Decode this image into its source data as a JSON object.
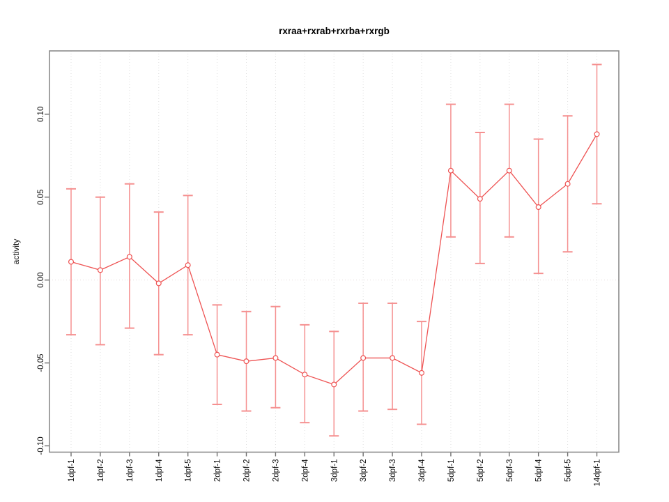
{
  "chart_data": {
    "type": "line",
    "title": "rxraa+rxrab+rxrba+rxrgb",
    "xlabel": "",
    "ylabel": "activity",
    "legend": "none",
    "grid": "dotted vertical gridline at each category; dotted horizontal line at y=0",
    "categories": [
      "1dpf-1",
      "1dpf-2",
      "1dpf-3",
      "1dpf-4",
      "1dpf-5",
      "2dpf-1",
      "2dpf-2",
      "2dpf-3",
      "2dpf-4",
      "3dpf-1",
      "3dpf-2",
      "3dpf-3",
      "3dpf-4",
      "5dpf-1",
      "5dpf-2",
      "5dpf-3",
      "5dpf-4",
      "5dpf-5",
      "14dpf-1"
    ],
    "values": [
      0.011,
      0.006,
      0.014,
      -0.002,
      0.009,
      -0.045,
      -0.049,
      -0.047,
      -0.057,
      -0.063,
      -0.047,
      -0.047,
      -0.056,
      0.066,
      0.049,
      0.066,
      0.044,
      0.058,
      0.088
    ],
    "error_low": [
      -0.033,
      -0.039,
      -0.029,
      -0.045,
      -0.033,
      -0.075,
      -0.079,
      -0.077,
      -0.086,
      -0.094,
      -0.079,
      -0.078,
      -0.087,
      0.026,
      0.01,
      0.026,
      0.004,
      0.017,
      0.046
    ],
    "error_high": [
      0.055,
      0.05,
      0.058,
      0.041,
      0.051,
      -0.015,
      -0.019,
      -0.016,
      -0.027,
      -0.031,
      -0.014,
      -0.014,
      -0.025,
      0.106,
      0.089,
      0.106,
      0.085,
      0.099,
      0.13
    ],
    "yticks": [
      "-0.10",
      "-0.05",
      "0.00",
      "0.05",
      "0.10"
    ],
    "ytick_values": [
      -0.1,
      -0.05,
      0.0,
      0.05,
      0.1
    ],
    "ylim": [
      -0.1038,
      0.1382
    ],
    "colors": {
      "series": "#ee5252",
      "error_bars": "#f59090",
      "marker_fill": "#ffffff",
      "grid": "#dedede",
      "zero_line": "#e2dada",
      "axis_box": "#8a8a8a",
      "tick": "#6e6e6e",
      "text": "#111111"
    }
  }
}
